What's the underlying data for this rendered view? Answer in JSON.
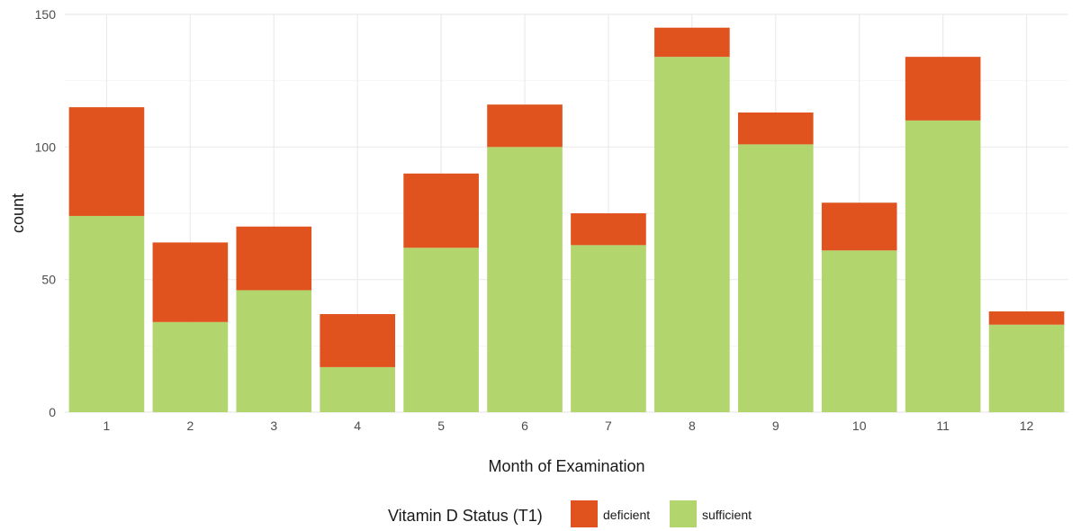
{
  "chart_data": {
    "type": "bar",
    "stacked": true,
    "categories": [
      "1",
      "2",
      "3",
      "4",
      "5",
      "6",
      "7",
      "8",
      "9",
      "10",
      "11",
      "12"
    ],
    "series": [
      {
        "name": "sufficient",
        "color": "#b2d56e",
        "values": [
          74,
          34,
          46,
          17,
          62,
          100,
          63,
          134,
          101,
          61,
          110,
          33
        ]
      },
      {
        "name": "deficient",
        "color": "#e0531f",
        "values": [
          41,
          30,
          24,
          20,
          28,
          16,
          12,
          11,
          12,
          18,
          24,
          5
        ]
      }
    ],
    "title": "",
    "xlabel": "Month of Examination",
    "ylabel": "count",
    "ylim": [
      0,
      150
    ],
    "yticks": [
      0,
      50,
      100,
      150
    ],
    "grid": true,
    "legend": {
      "title": "Vitamin D Status (T1)",
      "placement": "bottom",
      "entries": [
        "deficient",
        "sufficient"
      ]
    }
  }
}
